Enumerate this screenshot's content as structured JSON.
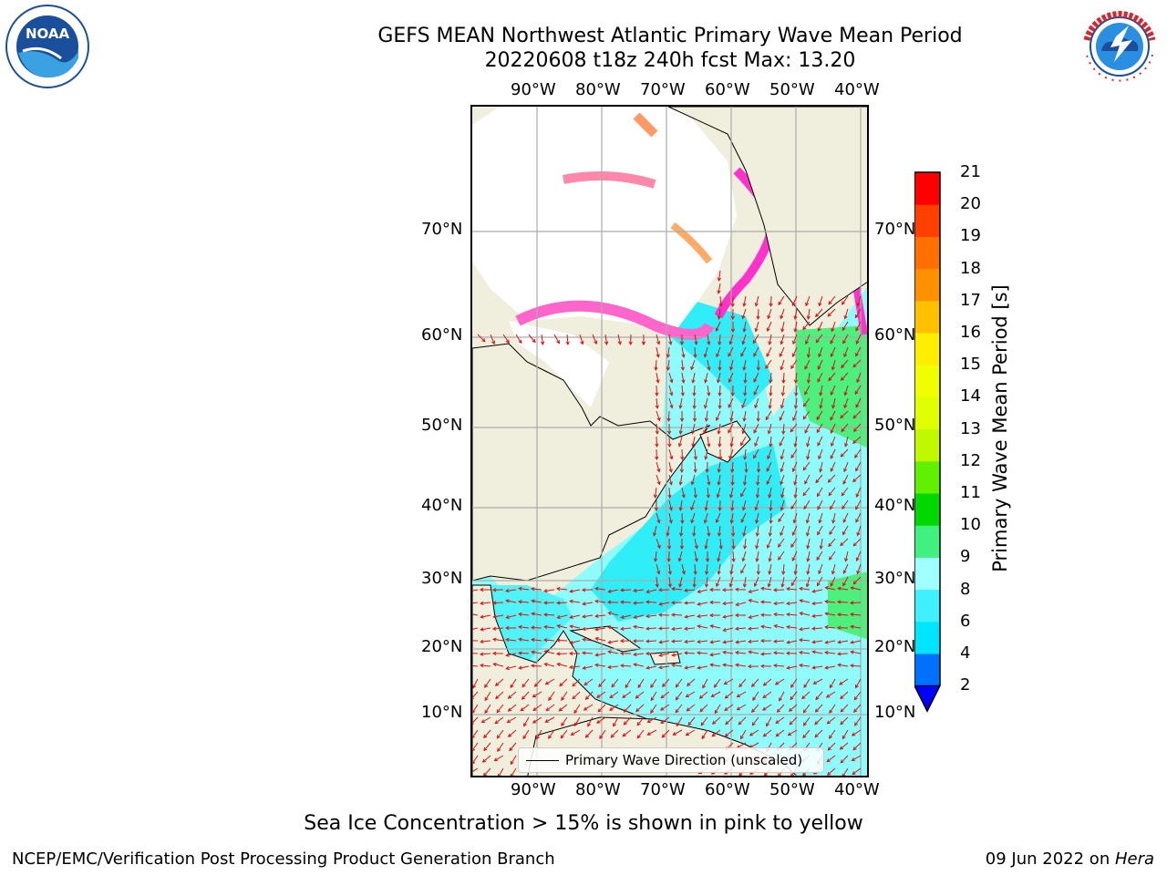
{
  "title": {
    "line1": "GEFS MEAN Northwest Atlantic Primary Wave Mean Period",
    "line2": "20220608 t18z 240h fcst   Max: 13.20"
  },
  "logos": {
    "noaa": {
      "text": "NOAA",
      "ring_text": "NATIONAL OCEANIC AND ATMOSPHERIC ADMINISTRATION",
      "bottom_text": "U.S. DEPARTMENT OF COMMERCE",
      "color": "#1a4f9c"
    },
    "nws": {
      "ring_text": "NATIONAL WEATHER SERVICE",
      "color": "#d7262e"
    }
  },
  "map": {
    "longitude_ticks": [
      "90°W",
      "80°W",
      "70°W",
      "60°W",
      "50°W",
      "40°W"
    ],
    "latitude_ticks": [
      "70°N",
      "60°N",
      "50°N",
      "40°N",
      "30°N",
      "20°N",
      "10°N"
    ],
    "land_color": "#f0eedc",
    "ice_color": "#ffffff",
    "arrow_color": "#dd1111",
    "legend": "Primary Wave Direction (unscaled)"
  },
  "colorbar": {
    "label": "Primary Wave Mean Period [s]",
    "ticks": [
      "2",
      "4",
      "6",
      "8",
      "9",
      "10",
      "11",
      "12",
      "13",
      "14",
      "15",
      "16",
      "17",
      "18",
      "19",
      "20",
      "21"
    ],
    "colors": [
      "#0070ff",
      "#00e5ff",
      "#40f0ff",
      "#a0ffff",
      "#40f080",
      "#00d800",
      "#60f000",
      "#c0f800",
      "#e0ff00",
      "#f0ff00",
      "#ffee00",
      "#ffc000",
      "#ff9000",
      "#ff7000",
      "#ff4000",
      "#ff0000"
    ],
    "under_color": "#0000ff",
    "max_value": 13.2
  },
  "footer": {
    "note": "Sea Ice Concentration > 15% is shown in pink to yellow",
    "left": "NCEP/EMC/Verification Post Processing Product Generation Branch",
    "date": "09 Jun 2022 on ",
    "host": "Hera"
  }
}
